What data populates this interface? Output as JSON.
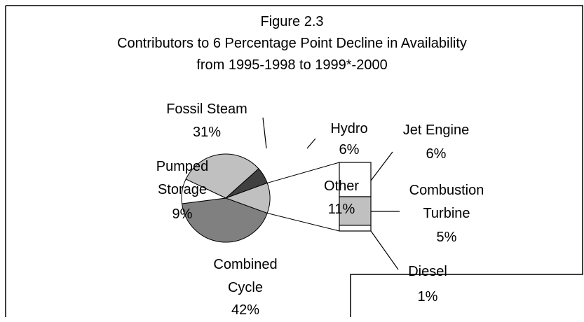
{
  "chart_data": {
    "type": "bar-of-pie",
    "title": "Figure 2.3",
    "subtitle": [
      "Contributors to 6 Percentage Point Decline in Availability",
      "from 1995-1998 to 1999*-2000"
    ],
    "categories": [
      "Fossil Steam",
      "Hydro",
      "Other",
      "Combined Cycle",
      "Pumped Storage"
    ],
    "values": [
      31,
      6,
      11,
      42,
      9
    ],
    "value_labels": [
      "31%",
      "6%",
      "11%",
      "42%",
      "9%"
    ],
    "colors": [
      "#c0c0c0",
      "#404040",
      "#c0c0c0",
      "#808080",
      "#ffffff"
    ],
    "breakdown": {
      "categories": [
        "Jet Engine",
        "Combustion Turbine",
        "Diesel"
      ],
      "values": [
        6,
        5,
        1
      ],
      "value_labels": [
        "6%",
        "5%",
        "1%"
      ],
      "colors": [
        "#ffffff",
        "#c0c0c0",
        "#ffffff"
      ]
    }
  }
}
